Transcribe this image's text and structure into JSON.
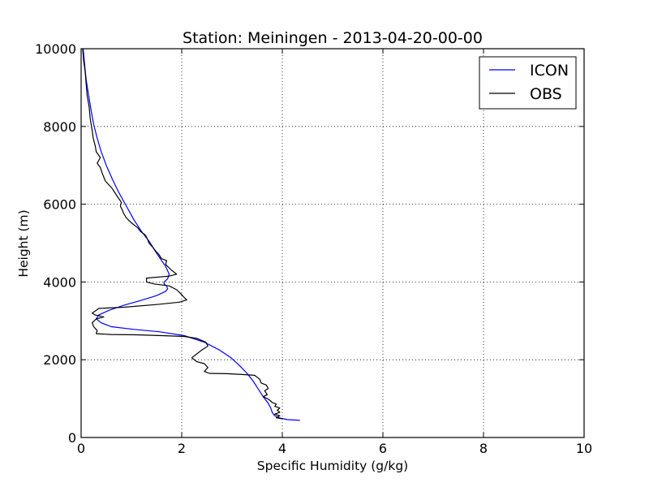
{
  "chart_data": {
    "type": "line",
    "title": "Station: Meiningen - 2013-04-20-00-00",
    "xlabel": "Specific Humidity (g/kg)",
    "ylabel": "Height (m)",
    "xlim": [
      0,
      10
    ],
    "ylim": [
      0,
      10000
    ],
    "xticks": [
      0,
      2,
      4,
      6,
      8,
      10
    ],
    "yticks": [
      0,
      2000,
      4000,
      6000,
      8000,
      10000
    ],
    "grid": true,
    "legend_position": "top-right",
    "series": [
      {
        "name": "ICON",
        "color": "#0000ff",
        "points": [
          [
            4.35,
            440
          ],
          [
            4.1,
            460
          ],
          [
            3.95,
            500
          ],
          [
            3.85,
            560
          ],
          [
            3.8,
            640
          ],
          [
            3.77,
            760
          ],
          [
            3.72,
            880
          ],
          [
            3.62,
            1050
          ],
          [
            3.52,
            1250
          ],
          [
            3.42,
            1450
          ],
          [
            3.3,
            1650
          ],
          [
            3.15,
            1850
          ],
          [
            2.98,
            2050
          ],
          [
            2.75,
            2250
          ],
          [
            2.45,
            2450
          ],
          [
            2.05,
            2620
          ],
          [
            1.55,
            2720
          ],
          [
            1.05,
            2780
          ],
          [
            0.6,
            2850
          ],
          [
            0.4,
            2950
          ],
          [
            0.3,
            3050
          ],
          [
            0.35,
            3150
          ],
          [
            0.55,
            3270
          ],
          [
            0.85,
            3400
          ],
          [
            1.2,
            3530
          ],
          [
            1.5,
            3650
          ],
          [
            1.68,
            3760
          ],
          [
            1.72,
            3820
          ],
          [
            1.7,
            3900
          ],
          [
            1.65,
            3950
          ],
          [
            1.65,
            4000
          ],
          [
            1.72,
            4080
          ],
          [
            1.75,
            4200
          ],
          [
            1.68,
            4400
          ],
          [
            1.6,
            4550
          ],
          [
            1.48,
            4780
          ],
          [
            1.35,
            5050
          ],
          [
            1.2,
            5300
          ],
          [
            1.05,
            5600
          ],
          [
            0.9,
            5950
          ],
          [
            0.75,
            6300
          ],
          [
            0.62,
            6650
          ],
          [
            0.5,
            7000
          ],
          [
            0.4,
            7350
          ],
          [
            0.32,
            7700
          ],
          [
            0.25,
            8050
          ],
          [
            0.2,
            8400
          ],
          [
            0.15,
            8800
          ],
          [
            0.1,
            9200
          ],
          [
            0.07,
            9600
          ],
          [
            0.04,
            10000
          ]
        ]
      },
      {
        "name": "OBS",
        "color": "#000000",
        "points": [
          [
            4.0,
            480
          ],
          [
            3.88,
            510
          ],
          [
            3.95,
            560
          ],
          [
            3.85,
            600
          ],
          [
            3.95,
            650
          ],
          [
            3.9,
            700
          ],
          [
            3.95,
            760
          ],
          [
            3.85,
            800
          ],
          [
            3.88,
            860
          ],
          [
            3.8,
            900
          ],
          [
            3.75,
            960
          ],
          [
            3.7,
            1000
          ],
          [
            3.62,
            1050
          ],
          [
            3.7,
            1100
          ],
          [
            3.65,
            1200
          ],
          [
            3.72,
            1260
          ],
          [
            3.68,
            1350
          ],
          [
            3.58,
            1400
          ],
          [
            3.55,
            1500
          ],
          [
            3.5,
            1550
          ],
          [
            3.45,
            1600
          ],
          [
            3.2,
            1620
          ],
          [
            2.9,
            1640
          ],
          [
            2.55,
            1650
          ],
          [
            2.45,
            1700
          ],
          [
            2.52,
            1800
          ],
          [
            2.45,
            1900
          ],
          [
            2.3,
            1950
          ],
          [
            2.2,
            2050
          ],
          [
            2.3,
            2150
          ],
          [
            2.4,
            2250
          ],
          [
            2.52,
            2350
          ],
          [
            2.48,
            2450
          ],
          [
            2.3,
            2550
          ],
          [
            2.05,
            2600
          ],
          [
            1.6,
            2620
          ],
          [
            1.1,
            2640
          ],
          [
            0.6,
            2650
          ],
          [
            0.3,
            2670
          ],
          [
            0.32,
            2750
          ],
          [
            0.25,
            2850
          ],
          [
            0.22,
            2950
          ],
          [
            0.3,
            3050
          ],
          [
            0.45,
            3100
          ],
          [
            0.28,
            3150
          ],
          [
            0.22,
            3200
          ],
          [
            0.3,
            3270
          ],
          [
            0.35,
            3320
          ],
          [
            0.85,
            3350
          ],
          [
            1.5,
            3420
          ],
          [
            1.95,
            3480
          ],
          [
            2.1,
            3540
          ],
          [
            2.05,
            3600
          ],
          [
            1.98,
            3700
          ],
          [
            1.9,
            3800
          ],
          [
            1.75,
            3900
          ],
          [
            1.45,
            3950
          ],
          [
            1.3,
            4000
          ],
          [
            1.3,
            4100
          ],
          [
            1.75,
            4150
          ],
          [
            1.9,
            4200
          ],
          [
            1.8,
            4300
          ],
          [
            1.72,
            4400
          ],
          [
            1.68,
            4450
          ],
          [
            1.7,
            4550
          ],
          [
            1.6,
            4600
          ],
          [
            1.55,
            4700
          ],
          [
            1.48,
            4800
          ],
          [
            1.42,
            4900
          ],
          [
            1.35,
            5000
          ],
          [
            1.32,
            5100
          ],
          [
            1.28,
            5200
          ],
          [
            1.18,
            5300
          ],
          [
            1.12,
            5400
          ],
          [
            1.02,
            5500
          ],
          [
            0.95,
            5580
          ],
          [
            0.9,
            5650
          ],
          [
            0.85,
            5750
          ],
          [
            0.82,
            5850
          ],
          [
            0.78,
            5950
          ],
          [
            0.8,
            6050
          ],
          [
            0.72,
            6200
          ],
          [
            0.62,
            6400
          ],
          [
            0.55,
            6500
          ],
          [
            0.48,
            6600
          ],
          [
            0.45,
            6700
          ],
          [
            0.42,
            6800
          ],
          [
            0.38,
            6950
          ],
          [
            0.32,
            7050
          ],
          [
            0.38,
            7200
          ],
          [
            0.3,
            7350
          ],
          [
            0.28,
            7500
          ],
          [
            0.24,
            7700
          ],
          [
            0.22,
            7900
          ],
          [
            0.18,
            8200
          ],
          [
            0.16,
            8500
          ],
          [
            0.12,
            8800
          ],
          [
            0.1,
            9100
          ],
          [
            0.08,
            9400
          ],
          [
            0.05,
            9700
          ],
          [
            0.03,
            10000
          ]
        ]
      }
    ]
  }
}
